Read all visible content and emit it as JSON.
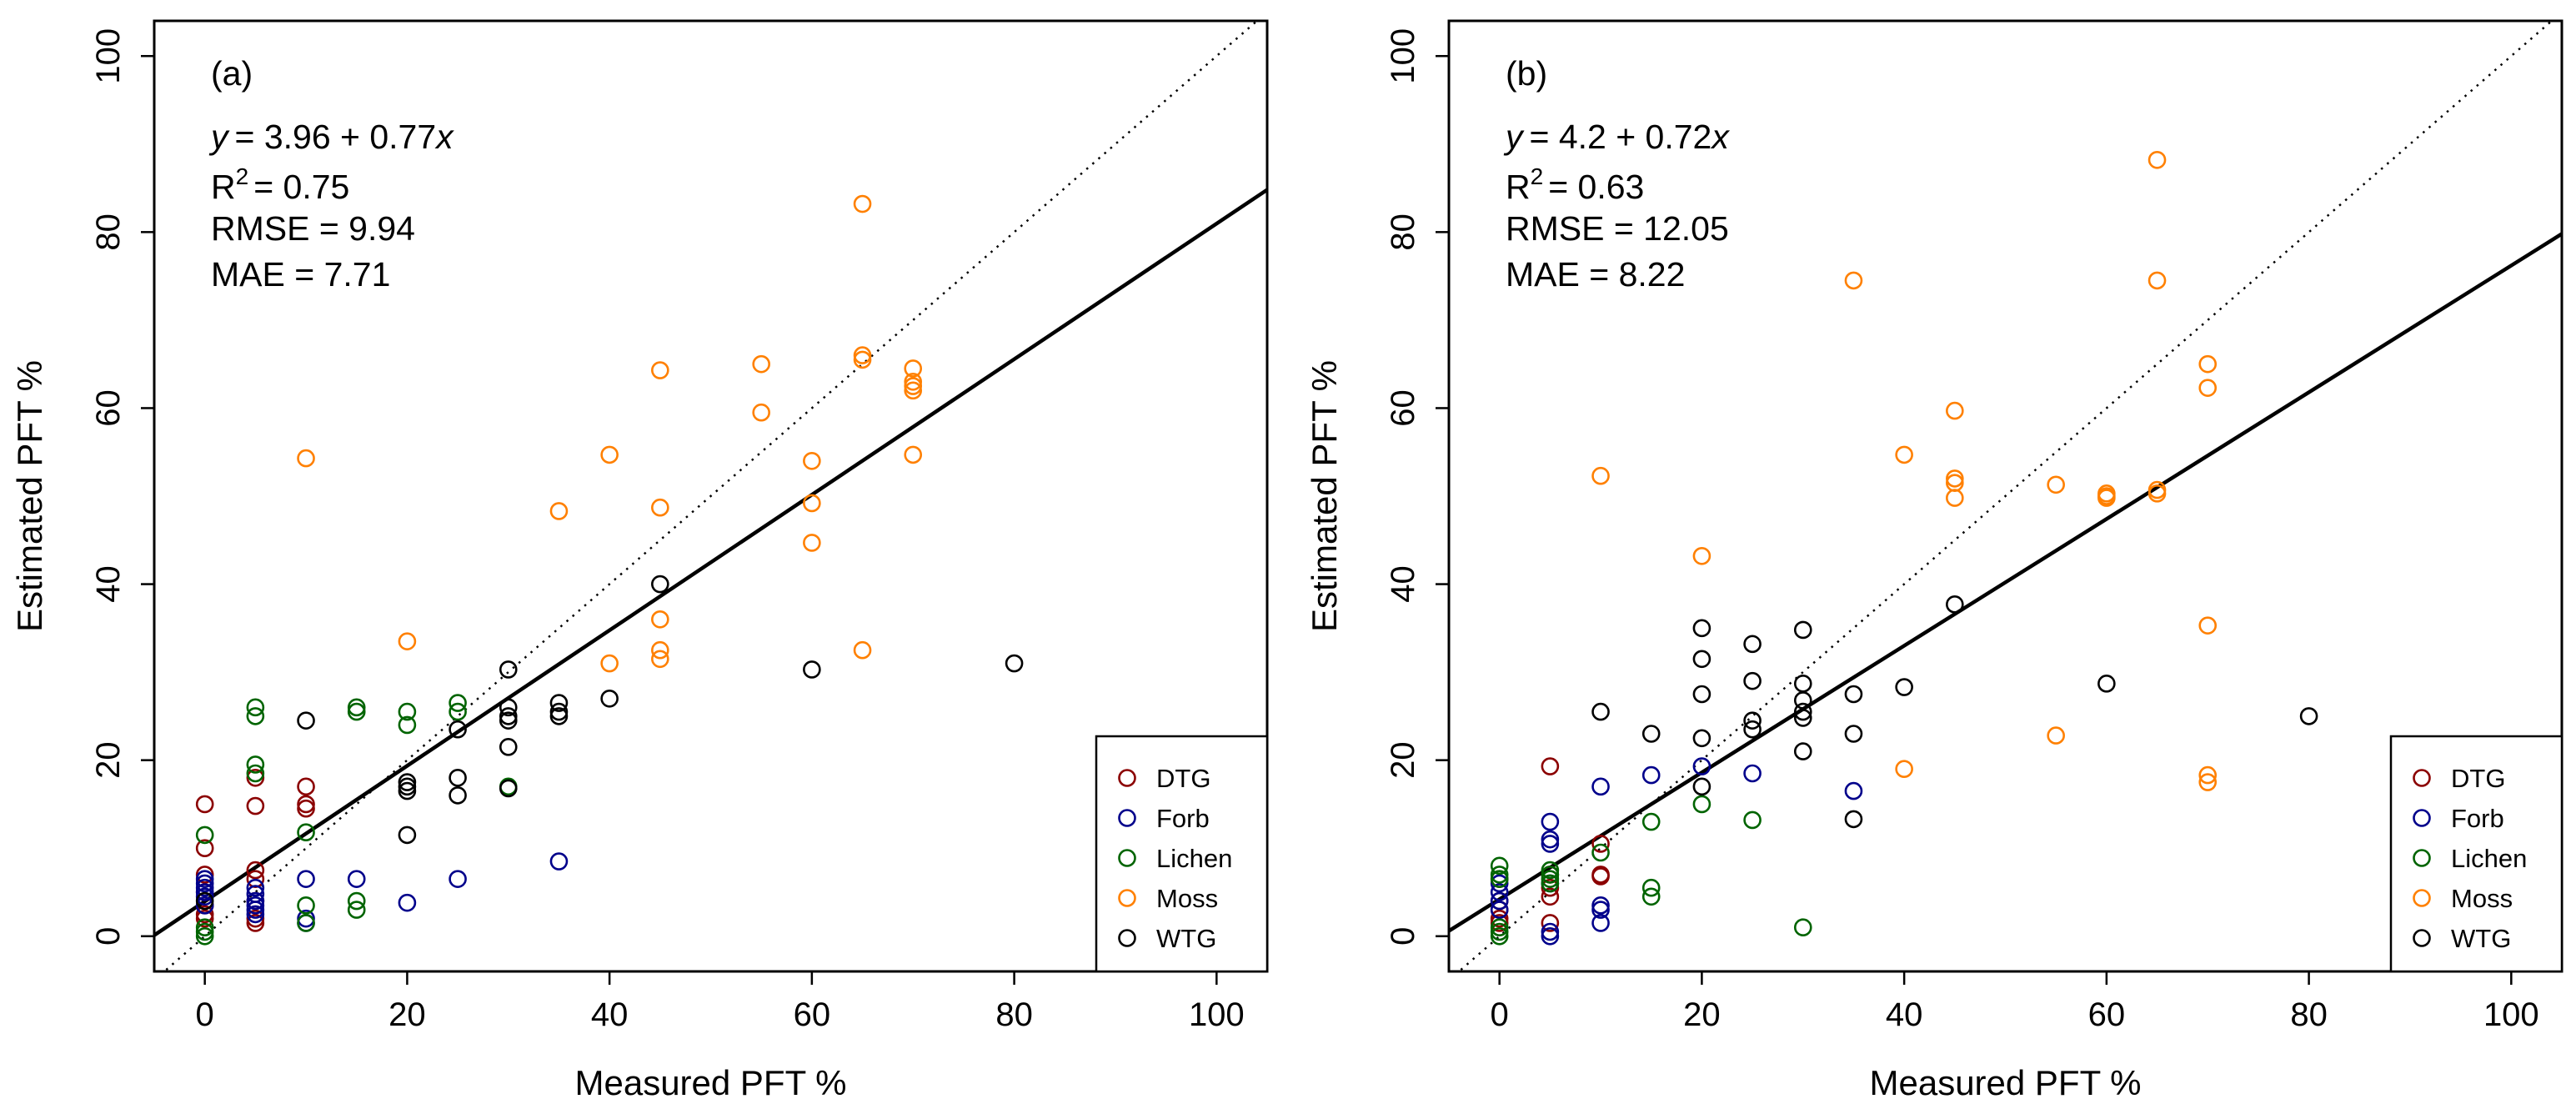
{
  "chart_data": [
    {
      "type": "scatter",
      "panel_label": "(a)",
      "xlabel": "Measured PFT %",
      "ylabel": "Estimated PFT %",
      "xlim": [
        -5,
        105
      ],
      "ylim": [
        -4,
        104
      ],
      "x_ticks": [
        0,
        20,
        40,
        60,
        80,
        100
      ],
      "y_ticks": [
        0,
        20,
        40,
        60,
        80,
        100
      ],
      "x_tick_labels": [
        "0",
        "20",
        "40",
        "60",
        "80",
        "100"
      ],
      "y_tick_labels": [
        "0",
        "20",
        "40",
        "60",
        "80",
        "100"
      ],
      "grid": false,
      "legend_placement": "bottom-right",
      "fit_line": {
        "intercept": 3.96,
        "slope": 0.77
      },
      "identity_line": {
        "style": "dotted",
        "intercept": 0,
        "slope": 1
      },
      "stats": {
        "eq_y": "y",
        "eq_equals": "= 3.96 + 0.77",
        "eq_x": "x",
        "r2_r": "R",
        "r2_sup": "2",
        "r2_value": "= 0.75",
        "rmse": "RMSE = 9.94",
        "mae": "MAE = 7.71"
      },
      "series": [
        {
          "name": "DTG",
          "color": "#8B0000",
          "points": [
            [
              0,
              15
            ],
            [
              0,
              10
            ],
            [
              0,
              7
            ],
            [
              0,
              5
            ],
            [
              0,
              3.5
            ],
            [
              0,
              2.5
            ],
            [
              0,
              2
            ],
            [
              5,
              18
            ],
            [
              5,
              14.8
            ],
            [
              5,
              7.5
            ],
            [
              5,
              6.5
            ],
            [
              5,
              4
            ],
            [
              5,
              2
            ],
            [
              5,
              1.5
            ],
            [
              10,
              17
            ],
            [
              10,
              15
            ],
            [
              10,
              14.5
            ]
          ]
        },
        {
          "name": "Forb",
          "color": "#00008B",
          "points": [
            [
              0,
              6.5
            ],
            [
              0,
              6
            ],
            [
              0,
              5.5
            ],
            [
              0,
              5
            ],
            [
              0,
              4.5
            ],
            [
              0,
              3.5
            ],
            [
              5,
              5.5
            ],
            [
              5,
              4.8
            ],
            [
              5,
              4
            ],
            [
              5,
              3.5
            ],
            [
              5,
              3
            ],
            [
              5,
              2.5
            ],
            [
              10,
              6.5
            ],
            [
              10,
              2
            ],
            [
              10,
              1.5
            ],
            [
              15,
              6.5
            ],
            [
              20,
              3.8
            ],
            [
              25,
              6.5
            ],
            [
              35,
              8.5
            ]
          ]
        },
        {
          "name": "Lichen",
          "color": "#006400",
          "points": [
            [
              0,
              11.5
            ],
            [
              0,
              1
            ],
            [
              0,
              0.5
            ],
            [
              0,
              0
            ],
            [
              5,
              26
            ],
            [
              5,
              25
            ],
            [
              5,
              19.5
            ],
            [
              5,
              18.5
            ],
            [
              10,
              11.8
            ],
            [
              10,
              3.5
            ],
            [
              10,
              1.5
            ],
            [
              15,
              26
            ],
            [
              15,
              25.5
            ],
            [
              15,
              4
            ],
            [
              15,
              3
            ],
            [
              20,
              25.5
            ],
            [
              20,
              24
            ],
            [
              25,
              26.5
            ],
            [
              25,
              25.5
            ],
            [
              30,
              17
            ]
          ]
        },
        {
          "name": "Moss",
          "color": "#FF8000",
          "points": [
            [
              10,
              54.3
            ],
            [
              20,
              33.5
            ],
            [
              35,
              48.3
            ],
            [
              40,
              54.7
            ],
            [
              40,
              31
            ],
            [
              45,
              64.3
            ],
            [
              45,
              48.7
            ],
            [
              45,
              36
            ],
            [
              45,
              32.5
            ],
            [
              45,
              31.5
            ],
            [
              55,
              65
            ],
            [
              55,
              59.5
            ],
            [
              60,
              54
            ],
            [
              60,
              49.2
            ],
            [
              60,
              44.7
            ],
            [
              65,
              83.2
            ],
            [
              65,
              66
            ],
            [
              65,
              65.5
            ],
            [
              65,
              32.5
            ],
            [
              70,
              64.5
            ],
            [
              70,
              63
            ],
            [
              70,
              62.5
            ],
            [
              70,
              62
            ],
            [
              70,
              54.7
            ]
          ]
        },
        {
          "name": "WTG",
          "color": "#000000",
          "points": [
            [
              0,
              4
            ],
            [
              10,
              24.5
            ],
            [
              20,
              17.5
            ],
            [
              20,
              17
            ],
            [
              20,
              16.5
            ],
            [
              20,
              11.5
            ],
            [
              25,
              23.5
            ],
            [
              25,
              18
            ],
            [
              25,
              16
            ],
            [
              30,
              30.3
            ],
            [
              30,
              26
            ],
            [
              30,
              25
            ],
            [
              30,
              24.5
            ],
            [
              30,
              21.5
            ],
            [
              30,
              16.8
            ],
            [
              35,
              26.5
            ],
            [
              35,
              25.5
            ],
            [
              35,
              25
            ],
            [
              40,
              27
            ],
            [
              45,
              40
            ],
            [
              60,
              30.3
            ],
            [
              80,
              31
            ]
          ]
        }
      ]
    },
    {
      "type": "scatter",
      "panel_label": "(b)",
      "xlabel": "Measured PFT %",
      "ylabel": "Estimated PFT %",
      "xlim": [
        -5,
        105
      ],
      "ylim": [
        -4,
        104
      ],
      "x_ticks": [
        0,
        20,
        40,
        60,
        80,
        100
      ],
      "y_ticks": [
        0,
        20,
        40,
        60,
        80,
        100
      ],
      "x_tick_labels": [
        "0",
        "20",
        "40",
        "60",
        "80",
        "100"
      ],
      "y_tick_labels": [
        "0",
        "20",
        "40",
        "60",
        "80",
        "100"
      ],
      "grid": false,
      "legend_placement": "bottom-right",
      "fit_line": {
        "intercept": 4.2,
        "slope": 0.72
      },
      "identity_line": {
        "style": "dotted",
        "intercept": 0,
        "slope": 1
      },
      "stats": {
        "eq_y": "y",
        "eq_equals": "= 4.2 + 0.72",
        "eq_x": "x",
        "r2_r": "R",
        "r2_sup": "2",
        "r2_value": "= 0.63",
        "rmse": "RMSE = 12.05",
        "mae": "MAE = 8.22"
      },
      "series": [
        {
          "name": "DTG",
          "color": "#8B0000",
          "points": [
            [
              0,
              6.5
            ],
            [
              0,
              4
            ],
            [
              0,
              3
            ],
            [
              0,
              2
            ],
            [
              0,
              1.5
            ],
            [
              5,
              19.3
            ],
            [
              5,
              7
            ],
            [
              5,
              5.5
            ],
            [
              5,
              4.5
            ],
            [
              5,
              1.5
            ],
            [
              10,
              10.5
            ],
            [
              10,
              7
            ],
            [
              10,
              6.8
            ]
          ]
        },
        {
          "name": "Forb",
          "color": "#00008B",
          "points": [
            [
              0,
              6
            ],
            [
              0,
              5
            ],
            [
              0,
              4
            ],
            [
              0,
              3
            ],
            [
              5,
              13
            ],
            [
              5,
              11
            ],
            [
              5,
              10.5
            ],
            [
              5,
              6
            ],
            [
              5,
              0.5
            ],
            [
              5,
              0
            ],
            [
              10,
              17
            ],
            [
              10,
              3.5
            ],
            [
              10,
              3
            ],
            [
              10,
              1.5
            ],
            [
              15,
              18.3
            ],
            [
              20,
              19.3
            ],
            [
              25,
              18.5
            ],
            [
              35,
              16.5
            ]
          ]
        },
        {
          "name": "Lichen",
          "color": "#006400",
          "points": [
            [
              0,
              8
            ],
            [
              0,
              7
            ],
            [
              0,
              6.5
            ],
            [
              0,
              1
            ],
            [
              0,
              0.5
            ],
            [
              0,
              0
            ],
            [
              5,
              7.5
            ],
            [
              5,
              7
            ],
            [
              5,
              6.5
            ],
            [
              5,
              6
            ],
            [
              10,
              9.5
            ],
            [
              15,
              13
            ],
            [
              15,
              5.5
            ],
            [
              15,
              4.5
            ],
            [
              20,
              15
            ],
            [
              25,
              13.2
            ],
            [
              30,
              1
            ]
          ]
        },
        {
          "name": "Moss",
          "color": "#FF8000",
          "points": [
            [
              10,
              52.3
            ],
            [
              20,
              43.2
            ],
            [
              35,
              74.5
            ],
            [
              40,
              54.7
            ],
            [
              40,
              19
            ],
            [
              45,
              59.7
            ],
            [
              45,
              52
            ],
            [
              45,
              51.5
            ],
            [
              45,
              49.8
            ],
            [
              55,
              51.3
            ],
            [
              55,
              22.8
            ],
            [
              60,
              50.3
            ],
            [
              60,
              50
            ],
            [
              60,
              49.8
            ],
            [
              65,
              88.2
            ],
            [
              65,
              74.5
            ],
            [
              65,
              50.7
            ],
            [
              65,
              50.3
            ],
            [
              70,
              65
            ],
            [
              70,
              62.3
            ],
            [
              70,
              35.3
            ],
            [
              70,
              18.3
            ],
            [
              70,
              17.5
            ]
          ]
        },
        {
          "name": "WTG",
          "color": "#000000",
          "points": [
            [
              10,
              25.5
            ],
            [
              15,
              23
            ],
            [
              20,
              35
            ],
            [
              20,
              31.5
            ],
            [
              20,
              27.5
            ],
            [
              20,
              22.5
            ],
            [
              20,
              17
            ],
            [
              25,
              33.2
            ],
            [
              25,
              29
            ],
            [
              25,
              24.5
            ],
            [
              25,
              23.5
            ],
            [
              30,
              34.8
            ],
            [
              30,
              28.7
            ],
            [
              30,
              26.8
            ],
            [
              30,
              25.5
            ],
            [
              30,
              24.8
            ],
            [
              30,
              21
            ],
            [
              35,
              27.5
            ],
            [
              35,
              23
            ],
            [
              35,
              13.3
            ],
            [
              40,
              28.3
            ],
            [
              45,
              37.7
            ],
            [
              60,
              28.7
            ],
            [
              80,
              25
            ]
          ]
        }
      ]
    }
  ]
}
